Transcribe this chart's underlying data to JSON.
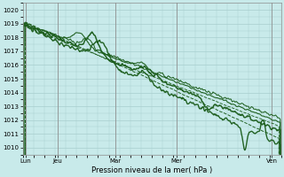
{
  "bg_color": "#c8eaea",
  "grid_color": "#a8cece",
  "line_color": "#1a5c1a",
  "xlabel": "Pression niveau de la mer( hPa )",
  "ylim": [
    1009.5,
    1020.5
  ],
  "yticks": [
    1010,
    1011,
    1012,
    1013,
    1014,
    1015,
    1016,
    1017,
    1018,
    1019,
    1020
  ],
  "xtick_labels": [
    "Lun",
    "Jeu",
    "Mar",
    "Mer",
    "Ven"
  ],
  "xtick_positions": [
    0.01,
    0.135,
    0.36,
    0.595,
    0.965
  ],
  "n_points": 400
}
